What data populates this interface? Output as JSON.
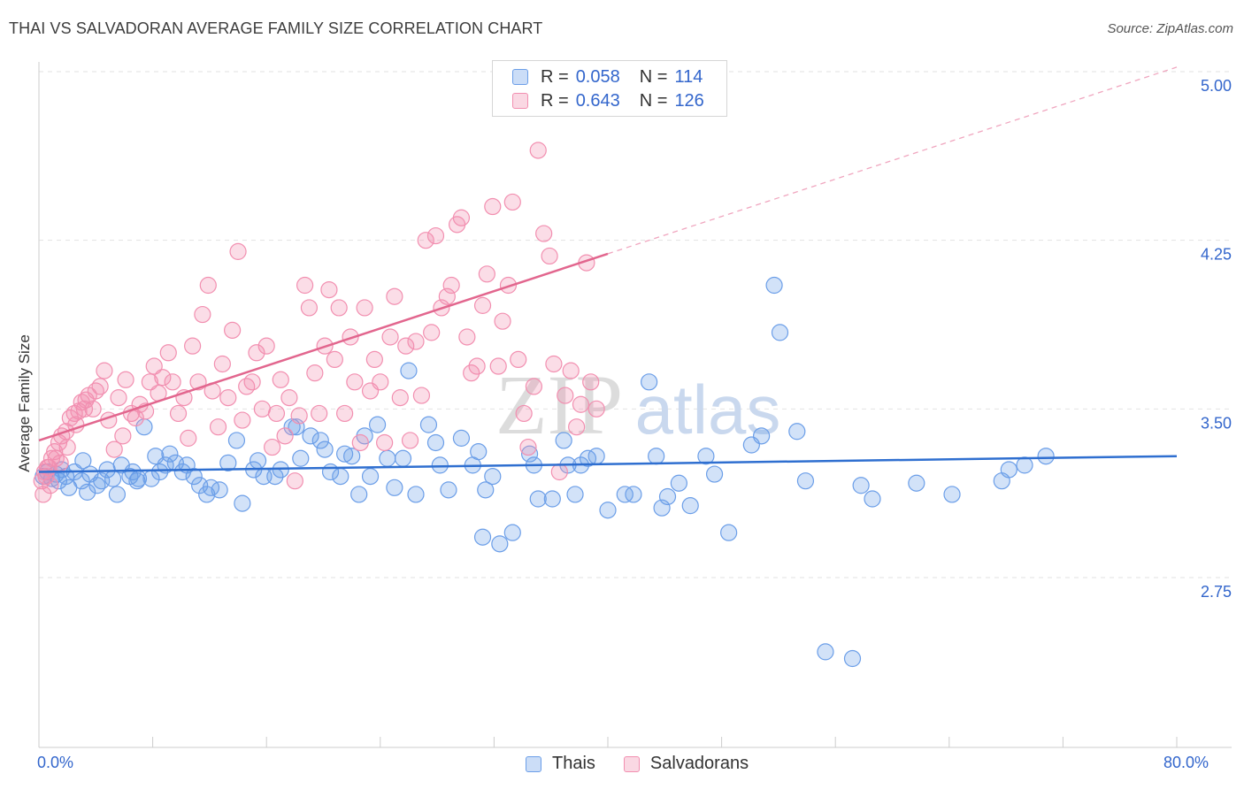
{
  "header": {
    "title": "THAI VS SALVADORAN AVERAGE FAMILY SIZE CORRELATION CHART",
    "source": "Source: ZipAtlas.com"
  },
  "watermark": {
    "zip": "ZIP",
    "atlas": "atlas"
  },
  "legend": {
    "r_label": "R =",
    "n_label": "N =",
    "items": [
      {
        "name": "Thais",
        "r": "0.058",
        "n": "114",
        "color": "#6b9ee8",
        "line_color": "#2f6fd0"
      },
      {
        "name": "Salvadorans",
        "r": "0.643",
        "n": "126",
        "color": "#f28fb0",
        "line_color": "#e2668e"
      }
    ]
  },
  "axes": {
    "x_min_label": "0.0%",
    "x_max_label": "80.0%",
    "y_title": "Average Family Size",
    "y_ticks": [
      "5.00",
      "4.25",
      "3.50",
      "2.75"
    ]
  },
  "chart_data": {
    "type": "scatter",
    "title": "THAI VS SALVADORAN AVERAGE FAMILY SIZE CORRELATION CHART",
    "xlabel": "",
    "ylabel": "Average Family Size",
    "xlim": [
      0,
      80
    ],
    "ylim": [
      2.0,
      5.1
    ],
    "y_ticks": [
      2.75,
      3.5,
      4.25,
      5.0
    ],
    "series": [
      {
        "name": "Thais",
        "trend": {
          "x": [
            0,
            80
          ],
          "y": [
            3.22,
            3.29
          ]
        },
        "points": [
          [
            0.3,
            3.2
          ],
          [
            0.6,
            3.22
          ],
          [
            0.9,
            3.19
          ],
          [
            1.2,
            3.21
          ],
          [
            1.4,
            3.18
          ],
          [
            1.6,
            3.23
          ],
          [
            1.9,
            3.2
          ],
          [
            2.1,
            3.15
          ],
          [
            2.5,
            3.22
          ],
          [
            3.0,
            3.18
          ],
          [
            3.1,
            3.27
          ],
          [
            3.4,
            3.13
          ],
          [
            3.6,
            3.21
          ],
          [
            4.1,
            3.16
          ],
          [
            4.4,
            3.18
          ],
          [
            4.8,
            3.23
          ],
          [
            5.2,
            3.19
          ],
          [
            5.5,
            3.12
          ],
          [
            5.8,
            3.25
          ],
          [
            6.4,
            3.2
          ],
          [
            6.6,
            3.22
          ],
          [
            6.9,
            3.18
          ],
          [
            7.0,
            3.19
          ],
          [
            7.4,
            3.42
          ],
          [
            7.9,
            3.19
          ],
          [
            8.2,
            3.29
          ],
          [
            8.5,
            3.22
          ],
          [
            8.9,
            3.25
          ],
          [
            9.2,
            3.3
          ],
          [
            9.6,
            3.26
          ],
          [
            10.1,
            3.22
          ],
          [
            10.4,
            3.25
          ],
          [
            10.9,
            3.2
          ],
          [
            11.3,
            3.16
          ],
          [
            11.8,
            3.12
          ],
          [
            12.1,
            3.15
          ],
          [
            12.7,
            3.14
          ],
          [
            13.3,
            3.26
          ],
          [
            13.9,
            3.36
          ],
          [
            14.3,
            3.08
          ],
          [
            15.1,
            3.23
          ],
          [
            15.4,
            3.27
          ],
          [
            15.8,
            3.2
          ],
          [
            16.6,
            3.2
          ],
          [
            17.0,
            3.23
          ],
          [
            17.8,
            3.42
          ],
          [
            18.1,
            3.42
          ],
          [
            18.4,
            3.28
          ],
          [
            19.1,
            3.38
          ],
          [
            19.8,
            3.36
          ],
          [
            20.1,
            3.32
          ],
          [
            20.5,
            3.22
          ],
          [
            21.2,
            3.2
          ],
          [
            21.5,
            3.3
          ],
          [
            22.0,
            3.29
          ],
          [
            22.5,
            3.12
          ],
          [
            22.9,
            3.38
          ],
          [
            23.3,
            3.2
          ],
          [
            23.8,
            3.43
          ],
          [
            24.5,
            3.28
          ],
          [
            25.0,
            3.15
          ],
          [
            25.6,
            3.28
          ],
          [
            26.0,
            3.67
          ],
          [
            26.5,
            3.12
          ],
          [
            27.4,
            3.43
          ],
          [
            27.9,
            3.35
          ],
          [
            28.2,
            3.25
          ],
          [
            28.8,
            3.14
          ],
          [
            29.7,
            3.37
          ],
          [
            30.5,
            3.25
          ],
          [
            30.9,
            3.31
          ],
          [
            31.2,
            2.93
          ],
          [
            31.4,
            3.14
          ],
          [
            31.9,
            3.2
          ],
          [
            32.4,
            2.9
          ],
          [
            33.3,
            2.95
          ],
          [
            34.5,
            3.3
          ],
          [
            34.8,
            3.25
          ],
          [
            35.1,
            3.1
          ],
          [
            36.1,
            3.1
          ],
          [
            36.9,
            3.36
          ],
          [
            37.2,
            3.25
          ],
          [
            37.7,
            3.12
          ],
          [
            38.1,
            3.25
          ],
          [
            38.6,
            3.28
          ],
          [
            39.2,
            3.29
          ],
          [
            40.0,
            3.05
          ],
          [
            41.2,
            3.12
          ],
          [
            41.8,
            3.12
          ],
          [
            42.9,
            3.62
          ],
          [
            43.4,
            3.29
          ],
          [
            43.8,
            3.06
          ],
          [
            44.2,
            3.11
          ],
          [
            45.0,
            3.17
          ],
          [
            45.8,
            3.07
          ],
          [
            46.9,
            3.29
          ],
          [
            47.5,
            3.21
          ],
          [
            48.5,
            2.95
          ],
          [
            50.1,
            3.34
          ],
          [
            50.8,
            3.38
          ],
          [
            51.7,
            4.05
          ],
          [
            52.1,
            3.84
          ],
          [
            53.3,
            3.4
          ],
          [
            53.9,
            3.18
          ],
          [
            55.3,
            2.42
          ],
          [
            57.2,
            2.39
          ],
          [
            57.8,
            3.16
          ],
          [
            58.6,
            3.1
          ],
          [
            61.7,
            3.17
          ],
          [
            64.2,
            3.12
          ],
          [
            67.7,
            3.18
          ],
          [
            68.2,
            3.23
          ],
          [
            69.3,
            3.25
          ],
          [
            70.8,
            3.29
          ]
        ]
      },
      {
        "name": "Salvadorans",
        "trend": {
          "x": [
            0,
            40
          ],
          "y": [
            3.36,
            4.19
          ]
        },
        "trend_ext": {
          "x": [
            40,
            80
          ],
          "y": [
            4.19,
            5.02
          ]
        },
        "points": [
          [
            0.2,
            3.18
          ],
          [
            0.4,
            3.22
          ],
          [
            0.7,
            3.24
          ],
          [
            0.9,
            3.28
          ],
          [
            1.1,
            3.31
          ],
          [
            1.4,
            3.35
          ],
          [
            1.6,
            3.38
          ],
          [
            1.9,
            3.4
          ],
          [
            2.2,
            3.46
          ],
          [
            2.5,
            3.48
          ],
          [
            2.8,
            3.49
          ],
          [
            3.2,
            3.5
          ],
          [
            3.3,
            3.54
          ],
          [
            3.5,
            3.56
          ],
          [
            3.8,
            3.5
          ],
          [
            4.0,
            3.58
          ],
          [
            4.3,
            3.6
          ],
          [
            4.6,
            3.67
          ],
          [
            4.9,
            3.45
          ],
          [
            5.3,
            3.32
          ],
          [
            5.6,
            3.55
          ],
          [
            5.9,
            3.38
          ],
          [
            6.1,
            3.63
          ],
          [
            6.5,
            3.48
          ],
          [
            6.8,
            3.46
          ],
          [
            7.1,
            3.52
          ],
          [
            7.5,
            3.49
          ],
          [
            7.8,
            3.62
          ],
          [
            8.1,
            3.69
          ],
          [
            8.4,
            3.57
          ],
          [
            8.7,
            3.64
          ],
          [
            9.1,
            3.75
          ],
          [
            9.4,
            3.62
          ],
          [
            9.8,
            3.48
          ],
          [
            10.2,
            3.55
          ],
          [
            10.5,
            3.37
          ],
          [
            10.8,
            3.78
          ],
          [
            11.2,
            3.62
          ],
          [
            11.5,
            3.92
          ],
          [
            11.9,
            4.05
          ],
          [
            12.2,
            3.58
          ],
          [
            12.6,
            3.42
          ],
          [
            12.9,
            3.7
          ],
          [
            13.3,
            3.55
          ],
          [
            13.6,
            3.85
          ],
          [
            14.0,
            4.2
          ],
          [
            14.3,
            3.45
          ],
          [
            14.6,
            3.6
          ],
          [
            15.0,
            3.62
          ],
          [
            15.3,
            3.75
          ],
          [
            15.7,
            3.5
          ],
          [
            16.0,
            3.78
          ],
          [
            16.4,
            3.33
          ],
          [
            16.7,
            3.48
          ],
          [
            17.0,
            3.63
          ],
          [
            17.3,
            3.38
          ],
          [
            17.6,
            3.55
          ],
          [
            18.0,
            3.18
          ],
          [
            18.3,
            3.47
          ],
          [
            18.7,
            4.05
          ],
          [
            19.0,
            3.95
          ],
          [
            19.4,
            3.66
          ],
          [
            19.7,
            3.48
          ],
          [
            20.1,
            3.78
          ],
          [
            20.4,
            4.03
          ],
          [
            20.8,
            3.72
          ],
          [
            21.1,
            3.95
          ],
          [
            21.5,
            3.48
          ],
          [
            21.9,
            3.82
          ],
          [
            22.2,
            3.62
          ],
          [
            22.6,
            3.35
          ],
          [
            22.9,
            3.95
          ],
          [
            23.3,
            3.58
          ],
          [
            23.6,
            3.72
          ],
          [
            24.0,
            3.62
          ],
          [
            24.3,
            3.35
          ],
          [
            24.7,
            3.82
          ],
          [
            25.0,
            4.0
          ],
          [
            25.4,
            3.55
          ],
          [
            25.8,
            3.78
          ],
          [
            26.1,
            3.36
          ],
          [
            26.5,
            3.8
          ],
          [
            26.9,
            3.56
          ],
          [
            27.2,
            4.25
          ],
          [
            27.6,
            3.84
          ],
          [
            27.9,
            4.27
          ],
          [
            28.3,
            3.95
          ],
          [
            28.7,
            4.0
          ],
          [
            29.0,
            4.05
          ],
          [
            29.4,
            4.32
          ],
          [
            29.7,
            4.35
          ],
          [
            30.1,
            3.82
          ],
          [
            30.4,
            3.66
          ],
          [
            30.8,
            3.69
          ],
          [
            31.2,
            3.96
          ],
          [
            31.5,
            4.1
          ],
          [
            31.9,
            4.4
          ],
          [
            32.3,
            3.69
          ],
          [
            32.6,
            3.89
          ],
          [
            33.0,
            4.05
          ],
          [
            33.3,
            4.42
          ],
          [
            33.7,
            3.72
          ],
          [
            34.1,
            3.48
          ],
          [
            34.4,
            3.33
          ],
          [
            34.8,
            3.6
          ],
          [
            35.1,
            4.65
          ],
          [
            35.5,
            4.28
          ],
          [
            35.9,
            4.18
          ],
          [
            36.2,
            3.7
          ],
          [
            36.6,
            3.22
          ],
          [
            37.0,
            3.56
          ],
          [
            37.4,
            3.67
          ],
          [
            37.8,
            3.42
          ],
          [
            38.1,
            3.52
          ],
          [
            38.5,
            4.15
          ],
          [
            38.8,
            3.62
          ],
          [
            39.2,
            3.5
          ],
          [
            0.5,
            3.2
          ],
          [
            0.8,
            3.16
          ],
          [
            1.2,
            3.28
          ],
          [
            1.5,
            3.26
          ],
          [
            2.0,
            3.33
          ],
          [
            2.6,
            3.43
          ],
          [
            3.0,
            3.53
          ],
          [
            0.3,
            3.12
          ],
          [
            0.6,
            3.24
          ]
        ]
      }
    ]
  }
}
